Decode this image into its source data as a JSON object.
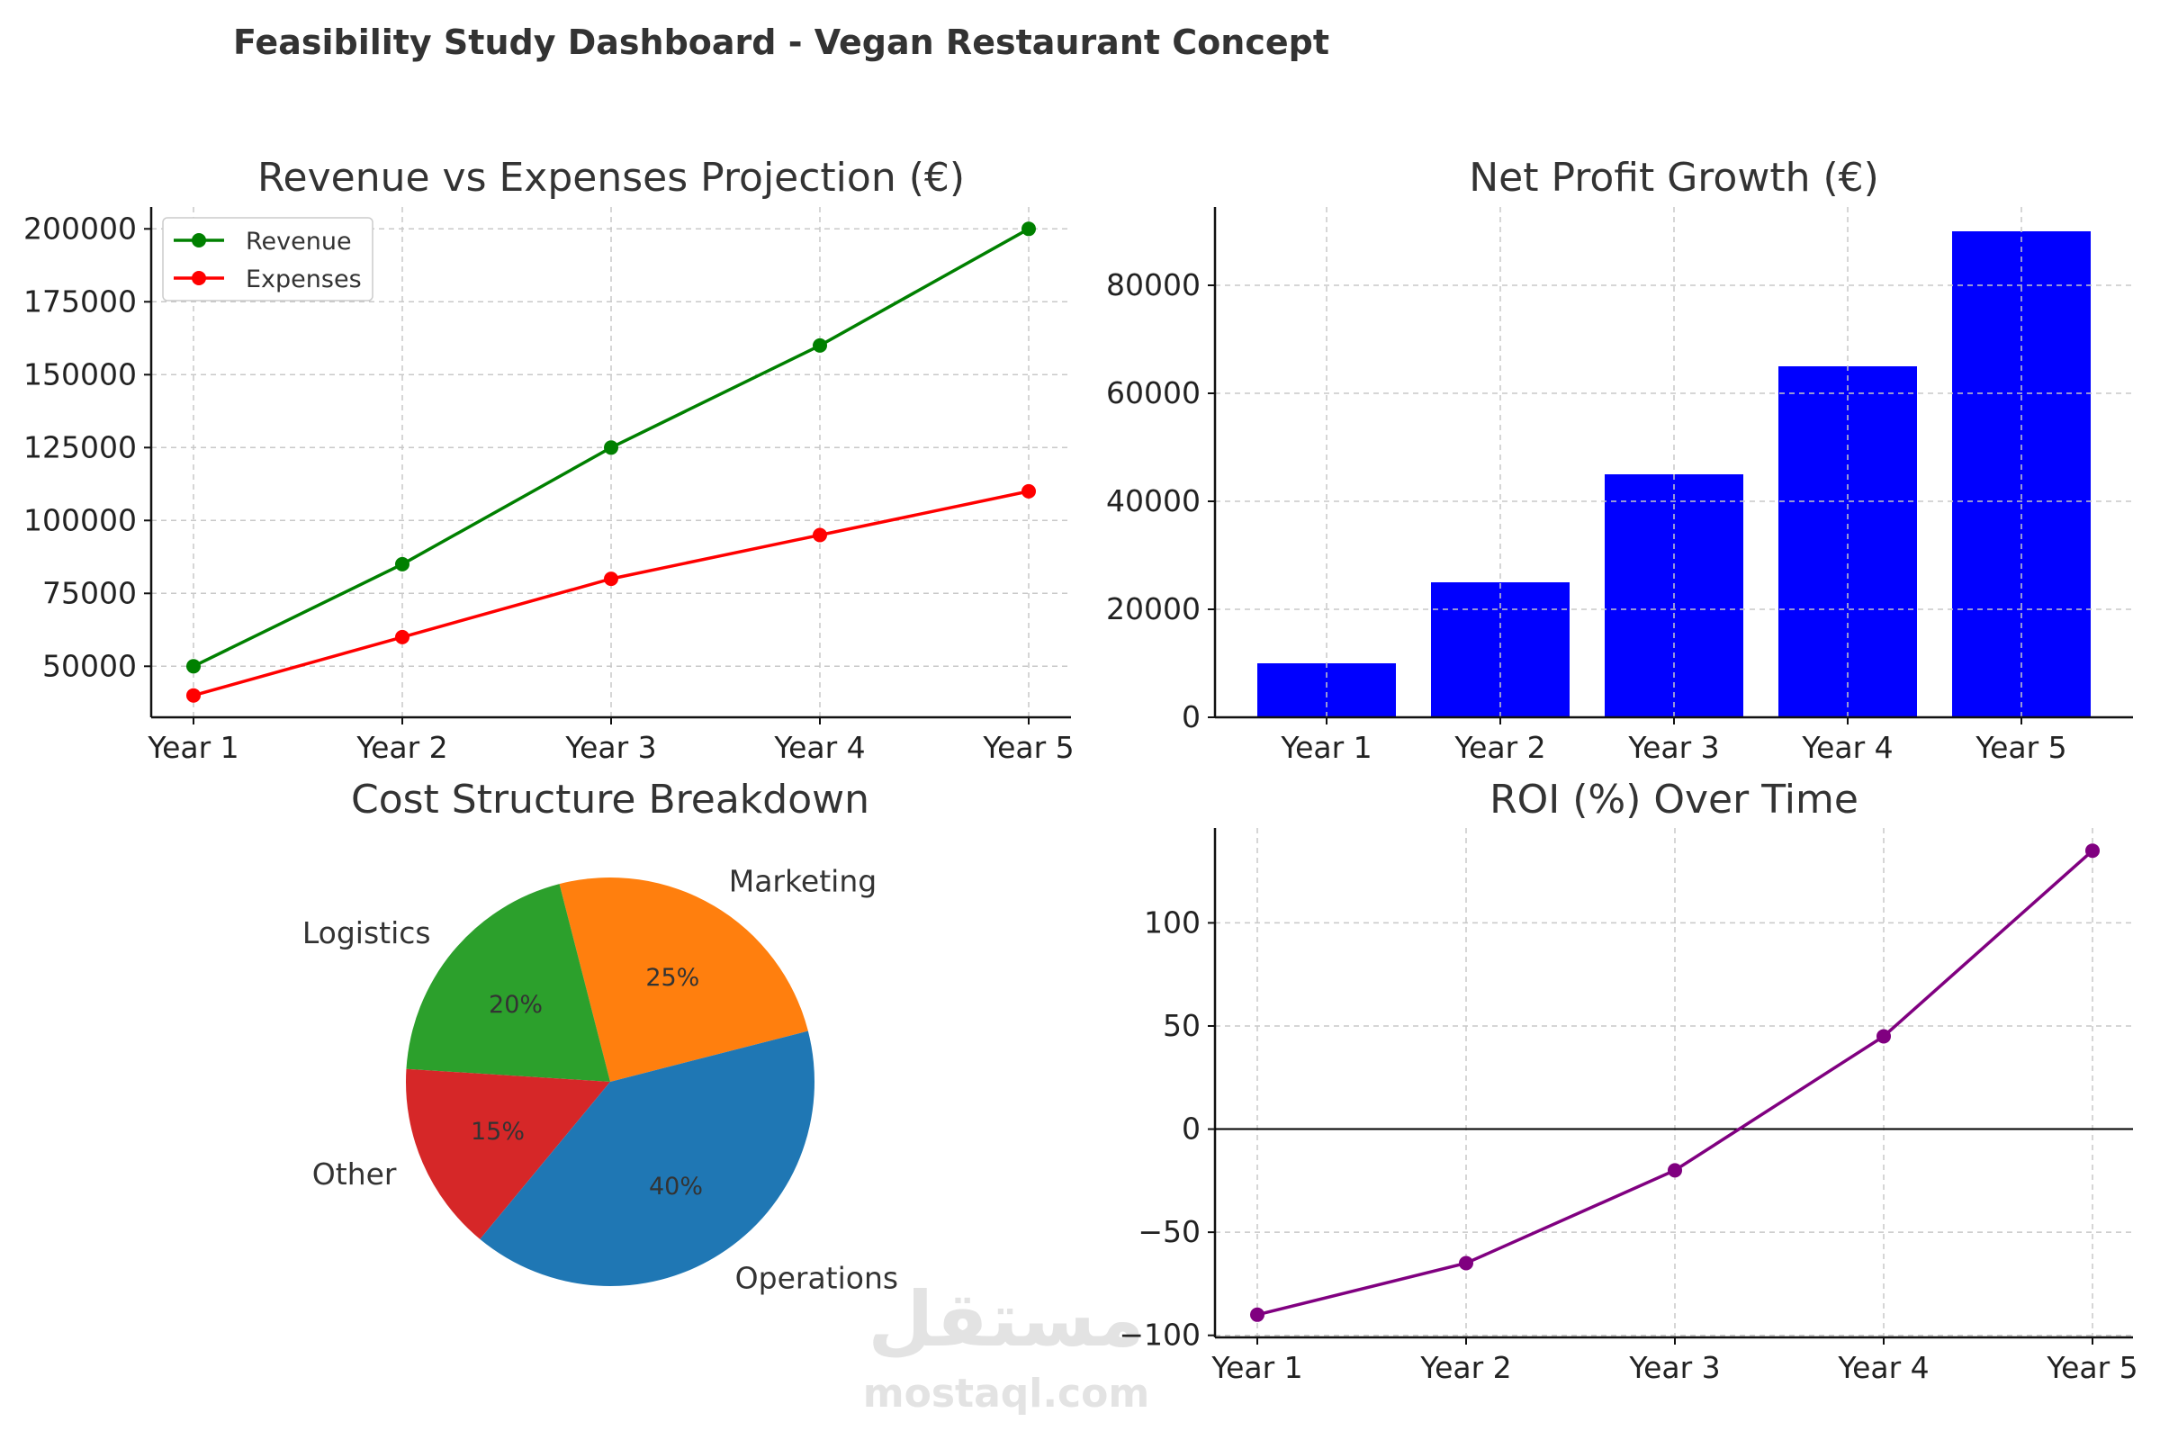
{
  "title": "Feasibility Study Dashboard - Vegan Restaurant Concept",
  "watermark": {
    "arabic": "مستقل",
    "latin": "mostaql.com"
  },
  "chart_data": [
    {
      "type": "line",
      "title": "Revenue vs Expenses Projection (€)",
      "categories": [
        "Year 1",
        "Year 2",
        "Year 3",
        "Year 4",
        "Year 5"
      ],
      "series": [
        {
          "name": "Revenue",
          "color": "#008000",
          "values": [
            50000,
            85000,
            125000,
            160000,
            200000
          ]
        },
        {
          "name": "Expenses",
          "color": "#ff0000",
          "values": [
            40000,
            60000,
            80000,
            95000,
            110000
          ]
        }
      ],
      "yticks": [
        50000,
        75000,
        100000,
        125000,
        150000,
        175000,
        200000
      ],
      "ylim": [
        32500,
        207500
      ],
      "grid": true,
      "legend": "upper-left"
    },
    {
      "type": "bar",
      "title": "Net Profit Growth (€)",
      "categories": [
        "Year 1",
        "Year 2",
        "Year 3",
        "Year 4",
        "Year 5"
      ],
      "values": [
        10000,
        25000,
        45000,
        65000,
        90000
      ],
      "color": "#0000ff",
      "yticks": [
        0,
        20000,
        40000,
        60000,
        80000
      ],
      "ylim": [
        0,
        94500
      ],
      "grid": true
    },
    {
      "type": "pie",
      "title": "Cost Structure Breakdown",
      "slices": [
        {
          "label": "Marketing",
          "value": 25,
          "pct_label": "25%",
          "color": "#ff7f0e"
        },
        {
          "label": "Logistics",
          "value": 20,
          "pct_label": "20%",
          "color": "#2ca02c"
        },
        {
          "label": "Other",
          "value": 15,
          "pct_label": "15%",
          "color": "#d62728"
        },
        {
          "label": "Operations",
          "value": 40,
          "pct_label": "40%",
          "color": "#1f77b4"
        }
      ]
    },
    {
      "type": "line",
      "title": "ROI (%) Over Time",
      "categories": [
        "Year 1",
        "Year 2",
        "Year 3",
        "Year 4",
        "Year 5"
      ],
      "series": [
        {
          "color": "#800080",
          "values": [
            -90,
            -65,
            -20,
            45,
            135
          ]
        }
      ],
      "yticks": [
        -100,
        -50,
        0,
        50,
        100
      ],
      "ylim": [
        -101,
        146
      ],
      "zero_line": true,
      "grid": true
    }
  ]
}
